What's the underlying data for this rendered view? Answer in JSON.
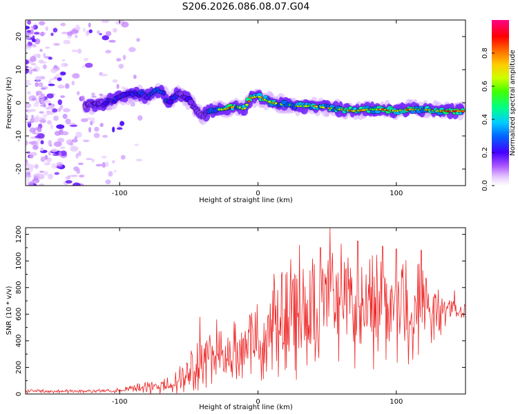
{
  "title": "S206.2026.086.08.07.G04",
  "chart_data": [
    {
      "type": "heatmap",
      "panel": "spectrogram",
      "xlabel": "Height of straight line (km)",
      "ylabel": "Frequency (Hz)",
      "xlim": [
        -168,
        150
      ],
      "ylim": [
        -25,
        25
      ],
      "xticks": [
        -100,
        0,
        100
      ],
      "yticks": [
        -20,
        -10,
        0,
        10,
        20
      ],
      "colorbar": {
        "label": "Normalized spectral amplitude",
        "range": [
          0,
          1
        ],
        "ticks": [
          0.0,
          0.2,
          0.4,
          0.6,
          0.8
        ],
        "tick_labels": [
          "0.0",
          "0.2",
          "0.4",
          "0.6",
          "0.8"
        ],
        "colormap": [
          "#ffffff",
          "#cc99ff",
          "#8800ff",
          "#0000ff",
          "#00ccff",
          "#00ff66",
          "#99ff00",
          "#ffff00",
          "#ff8800",
          "#ff0000",
          "#ff0088"
        ]
      },
      "ridge": {
        "x": [
          -125,
          -110,
          -100,
          -90,
          -80,
          -70,
          -65,
          -58,
          -50,
          -45,
          -40,
          -35,
          -30,
          -25,
          -20,
          -15,
          -10,
          -5,
          0,
          10,
          20,
          30,
          40,
          50,
          60,
          70,
          80,
          90,
          100,
          110,
          120,
          130,
          140,
          148
        ],
        "frequency_hz": [
          -1,
          0,
          1.5,
          3,
          2,
          4,
          0,
          3,
          1,
          -2,
          -4,
          -2.5,
          -2,
          -2,
          -1.5,
          -1,
          -2,
          1.5,
          2,
          0,
          -0.5,
          -1,
          -1,
          -1.5,
          -2,
          -2.5,
          -2,
          -2,
          -2.5,
          -2,
          -2,
          -2.5,
          -2.5,
          -2.5
        ],
        "amplitude": [
          0.3,
          0.35,
          0.45,
          0.5,
          0.45,
          0.5,
          0.4,
          0.4,
          0.35,
          0.3,
          0.3,
          0.45,
          0.6,
          0.75,
          0.85,
          0.6,
          0.7,
          0.8,
          0.9,
          0.7,
          0.6,
          0.65,
          0.7,
          0.7,
          0.75,
          0.8,
          0.75,
          0.85,
          0.8,
          0.8,
          0.75,
          0.8,
          0.85,
          0.9
        ]
      },
      "noise_region_x": [
        -168,
        -80
      ]
    },
    {
      "type": "line",
      "panel": "snr",
      "xlabel": "Height of straight line (km)",
      "ylabel": "SNR (10 * v/v)",
      "xlim": [
        -168,
        150
      ],
      "ylim": [
        0,
        1250
      ],
      "xticks": [
        -100,
        0,
        100
      ],
      "yticks": [
        0,
        200,
        400,
        600,
        800,
        1000,
        1200
      ],
      "color": "#ee2222",
      "envelope": {
        "x": [
          -168,
          -140,
          -110,
          -100,
          -90,
          -80,
          -70,
          -60,
          -50,
          -45,
          -40,
          -35,
          -30,
          -20,
          -10,
          0,
          10,
          20,
          30,
          40,
          50,
          60,
          70,
          80,
          90,
          100,
          110,
          120,
          130,
          140,
          150
        ],
        "mean": [
          20,
          20,
          25,
          30,
          45,
          40,
          60,
          80,
          150,
          200,
          320,
          280,
          240,
          300,
          330,
          400,
          500,
          560,
          600,
          620,
          700,
          680,
          650,
          620,
          640,
          650,
          600,
          650,
          620,
          620,
          640
        ],
        "amplitude": [
          15,
          15,
          15,
          25,
          40,
          50,
          60,
          100,
          150,
          200,
          280,
          250,
          220,
          250,
          250,
          300,
          400,
          450,
          500,
          500,
          550,
          520,
          500,
          450,
          480,
          450,
          380,
          350,
          200,
          100,
          60
        ]
      },
      "peaks": [
        {
          "x": -42,
          "y": 580
        },
        {
          "x": -30,
          "y": 560
        },
        {
          "x": 12,
          "y": 820
        },
        {
          "x": 30,
          "y": 1120
        },
        {
          "x": 45,
          "y": 1100
        },
        {
          "x": 52,
          "y": 1250
        },
        {
          "x": 60,
          "y": 1130
        },
        {
          "x": 72,
          "y": 1150
        },
        {
          "x": 90,
          "y": 1110
        },
        {
          "x": 100,
          "y": 1090
        },
        {
          "x": 118,
          "y": 1080
        },
        {
          "x": 142,
          "y": 780
        }
      ]
    }
  ]
}
